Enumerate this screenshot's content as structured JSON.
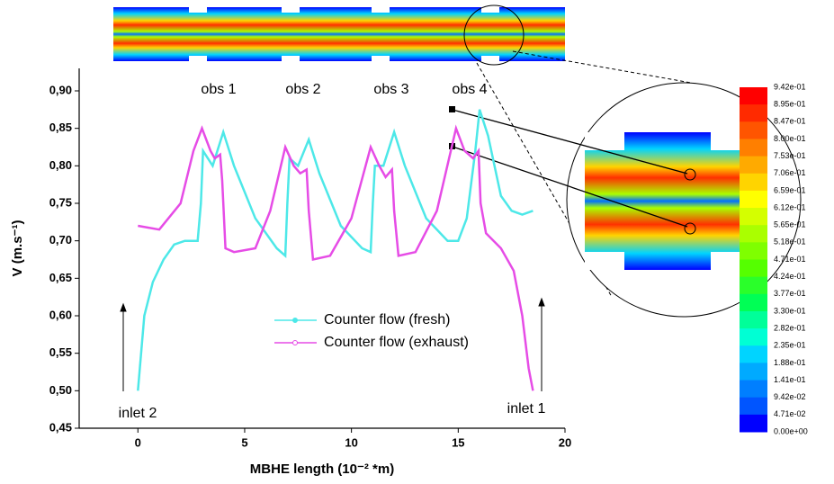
{
  "chart_data": {
    "type": "line",
    "xlabel": "MBHE length (10⁻² *m)",
    "ylabel": "V (m.s⁻¹)",
    "xlim": [
      -2.75,
      20
    ],
    "ylim": [
      0.45,
      0.93
    ],
    "xticks": [
      0,
      5,
      10,
      15,
      20
    ],
    "yticks": [
      {
        "value": 0.45,
        "label": "0,45"
      },
      {
        "value": 0.5,
        "label": "0,50"
      },
      {
        "value": 0.55,
        "label": "0,55"
      },
      {
        "value": 0.6,
        "label": "0,60"
      },
      {
        "value": 0.65,
        "label": "0,65"
      },
      {
        "value": 0.7,
        "label": "0,70"
      },
      {
        "value": 0.75,
        "label": "0,75"
      },
      {
        "value": 0.8,
        "label": "0,80"
      },
      {
        "value": 0.85,
        "label": "0,85"
      },
      {
        "value": 0.9,
        "label": "0,90"
      }
    ],
    "series": [
      {
        "name": "Counter flow (fresh)",
        "color": "#4de8e8",
        "x": [
          0,
          0.3,
          0.7,
          1.2,
          1.7,
          2.2,
          2.8,
          2.95,
          3.05,
          3.5,
          4.0,
          4.5,
          5.5,
          6.5,
          6.9,
          7.0,
          7.1,
          7.5,
          8.0,
          8.5,
          9.5,
          10.5,
          10.9,
          11.0,
          11.1,
          11.5,
          12.0,
          12.5,
          13.5,
          14.5,
          15.0,
          15.4,
          15.8,
          16.0,
          16.4,
          17.0,
          17.5,
          18.0,
          18.5
        ],
        "values": [
          0.5,
          0.6,
          0.645,
          0.675,
          0.695,
          0.7,
          0.7,
          0.75,
          0.82,
          0.8,
          0.845,
          0.8,
          0.73,
          0.69,
          0.68,
          0.75,
          0.81,
          0.8,
          0.835,
          0.79,
          0.72,
          0.69,
          0.685,
          0.75,
          0.8,
          0.8,
          0.845,
          0.8,
          0.73,
          0.7,
          0.7,
          0.73,
          0.82,
          0.875,
          0.84,
          0.76,
          0.74,
          0.735,
          0.74
        ]
      },
      {
        "name": "Counter flow (exhaust)",
        "color": "#e64ce6",
        "x": [
          0,
          1.0,
          2.0,
          2.6,
          3.0,
          3.4,
          3.6,
          3.85,
          3.95,
          4.1,
          4.5,
          5.5,
          6.2,
          6.9,
          7.3,
          7.6,
          7.9,
          8.0,
          8.2,
          9.0,
          10.0,
          10.9,
          11.3,
          11.6,
          11.9,
          12.0,
          12.2,
          13.0,
          14.0,
          14.9,
          15.3,
          15.7,
          15.95,
          16.05,
          16.3,
          17.0,
          17.6,
          18.0,
          18.3,
          18.5
        ],
        "values": [
          0.72,
          0.715,
          0.75,
          0.82,
          0.85,
          0.82,
          0.81,
          0.815,
          0.78,
          0.69,
          0.685,
          0.69,
          0.74,
          0.825,
          0.8,
          0.79,
          0.795,
          0.74,
          0.675,
          0.68,
          0.73,
          0.825,
          0.8,
          0.785,
          0.795,
          0.74,
          0.68,
          0.685,
          0.74,
          0.85,
          0.82,
          0.81,
          0.82,
          0.75,
          0.71,
          0.69,
          0.66,
          0.6,
          0.53,
          0.5
        ]
      }
    ],
    "annotations": [
      "obs 1",
      "obs 2",
      "obs 3",
      "obs 4",
      "inlet 2",
      "inlet 1"
    ],
    "colorbar": {
      "labels": [
        "9.42e-01",
        "8.95e-01",
        "8.47e-01",
        "8.00e-01",
        "7.53e-01",
        "7.06e-01",
        "6.59e-01",
        "6.12e-01",
        "5.65e-01",
        "5.18e-01",
        "4.71e-01",
        "4.24e-01",
        "3.77e-01",
        "3.30e-01",
        "2.82e-01",
        "2.35e-01",
        "1.88e-01",
        "1.41e-01",
        "9.42e-02",
        "4.71e-02",
        "0.00e+00"
      ],
      "colors": [
        "#ff0000",
        "#ff2a00",
        "#ff5500",
        "#ff7f00",
        "#ffaa00",
        "#ffd400",
        "#ffff00",
        "#d4ff00",
        "#aaff00",
        "#7fff00",
        "#55ff00",
        "#2aff2a",
        "#00ff55",
        "#00ff99",
        "#00ffd4",
        "#00d4ff",
        "#00aaff",
        "#007fff",
        "#0055ff",
        "#0000ff"
      ]
    }
  }
}
